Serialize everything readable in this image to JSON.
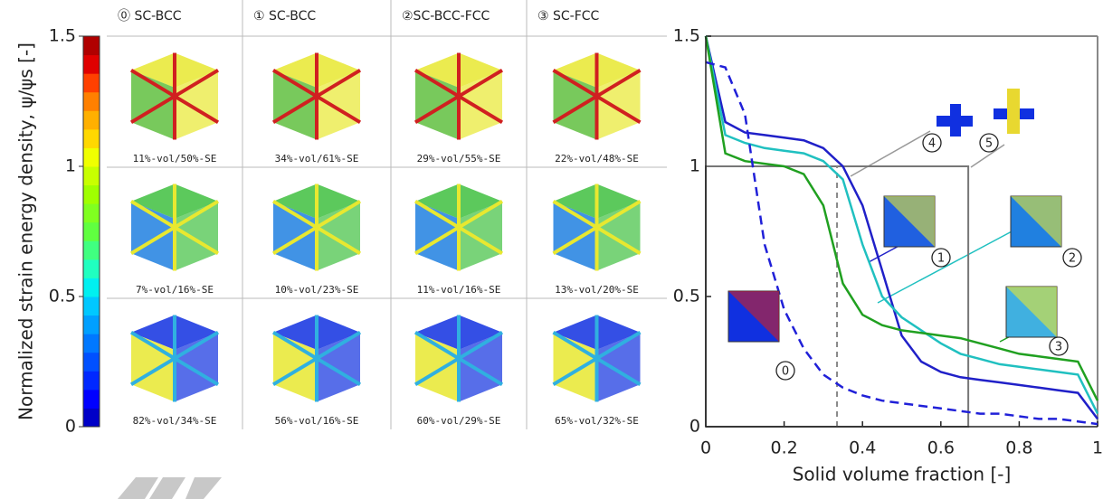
{
  "chart_data": [
    {
      "type": "colorbar",
      "ylabel": "Normalized strain energy density, ψ/ψs [-]",
      "ylim": [
        0,
        1.5
      ],
      "yticks": [
        0,
        0.5,
        1,
        1.5
      ],
      "colors": [
        "#0000c8",
        "#0000ff",
        "#0028ff",
        "#0050ff",
        "#0078ff",
        "#00a0ff",
        "#00c8ff",
        "#00f0f0",
        "#20ffc0",
        "#40ff80",
        "#60ff40",
        "#80ff20",
        "#a0ff00",
        "#c8ff00",
        "#f0ff00",
        "#ffd800",
        "#ffb000",
        "#ff8000",
        "#ff4000",
        "#e00000",
        "#b00000"
      ],
      "columns": [
        {
          "header": "⓪ SC-BCC",
          "captions": [
            "11%-vol/50%-SE",
            "7%-vol/16%-SE",
            "82%-vol/34%-SE"
          ]
        },
        {
          "header": "① SC-BCC",
          "captions": [
            "34%-vol/61%-SE",
            "10%-vol/23%-SE",
            "56%-vol/16%-SE"
          ]
        },
        {
          "header": "②SC-BCC-FCC",
          "captions": [
            "29%-vol/55%-SE",
            "11%-vol/16%-SE",
            "60%-vol/29%-SE"
          ]
        },
        {
          "header": "③ SC-FCC",
          "captions": [
            "22%-vol/48%-SE",
            "13%-vol/20%-SE",
            "65%-vol/32%-SE"
          ]
        }
      ]
    },
    {
      "type": "line",
      "xlabel": "Solid volume fraction [-]",
      "xlim": [
        0,
        1
      ],
      "ylim": [
        0,
        1.5
      ],
      "xticks": [
        0,
        0.2,
        0.4,
        0.6,
        0.8,
        1
      ],
      "yticks": [
        0,
        0.5,
        1,
        1.5
      ],
      "x": [
        0,
        0.05,
        0.1,
        0.15,
        0.2,
        0.25,
        0.3,
        0.35,
        0.4,
        0.45,
        0.5,
        0.55,
        0.6,
        0.65,
        0.7,
        0.75,
        0.8,
        0.85,
        0.9,
        0.95,
        1
      ],
      "series": [
        {
          "color": "#2020c8",
          "dashed": false,
          "values": [
            1.5,
            1.17,
            1.13,
            1.12,
            1.11,
            1.1,
            1.07,
            1.0,
            0.85,
            0.6,
            0.35,
            0.25,
            0.21,
            0.19,
            0.18,
            0.17,
            0.16,
            0.15,
            0.14,
            0.13,
            0.03
          ]
        },
        {
          "color": "#20c0c0",
          "dashed": false,
          "values": [
            1.5,
            1.12,
            1.09,
            1.07,
            1.06,
            1.05,
            1.02,
            0.95,
            0.7,
            0.5,
            0.42,
            0.37,
            0.32,
            0.28,
            0.26,
            0.24,
            0.23,
            0.22,
            0.21,
            0.2,
            0.05
          ]
        },
        {
          "color": "#20a020",
          "dashed": false,
          "values": [
            1.5,
            1.05,
            1.02,
            1.01,
            1.0,
            0.97,
            0.85,
            0.55,
            0.43,
            0.39,
            0.37,
            0.36,
            0.35,
            0.34,
            0.32,
            0.3,
            0.28,
            0.27,
            0.26,
            0.25,
            0.1
          ]
        },
        {
          "color": "#2020d8",
          "dashed": true,
          "values": [
            1.4,
            1.38,
            1.2,
            0.7,
            0.45,
            0.3,
            0.2,
            0.15,
            0.12,
            0.1,
            0.09,
            0.08,
            0.07,
            0.06,
            0.05,
            0.05,
            0.04,
            0.03,
            0.03,
            0.02,
            0.01
          ]
        }
      ],
      "box": {
        "x": [
          0,
          0.67
        ],
        "y": [
          0,
          1
        ]
      },
      "vline": 0.335,
      "annotations": [
        "0",
        "1",
        "2",
        "3",
        "4",
        "5"
      ]
    }
  ]
}
